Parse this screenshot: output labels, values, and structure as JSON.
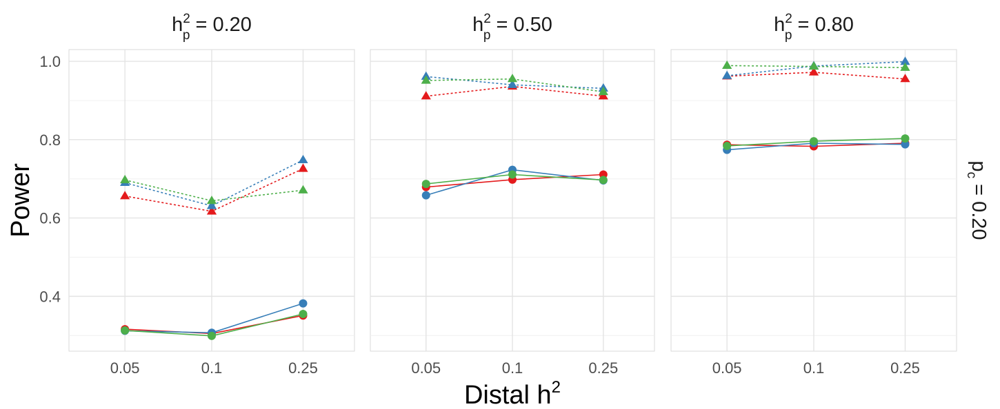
{
  "chart_data": {
    "type": "line",
    "ylabel": "Power",
    "xlabel": {
      "base": "Distal h",
      "sup": "2"
    },
    "strip_right": {
      "base": "p",
      "sub": "c",
      "rest": " = 0.20"
    },
    "x_categories": [
      "0.05",
      "0.1",
      "0.25"
    ],
    "ylim": [
      0.26,
      1.03
    ],
    "yticks": [
      "1.0",
      "0.8",
      "0.6",
      "0.4"
    ],
    "ytick_values": [
      1.0,
      0.8,
      0.6,
      0.4
    ],
    "yminor_values": [
      0.9,
      0.7,
      0.5,
      0.3
    ],
    "grid": true,
    "facets": [
      {
        "title": {
          "base": "h",
          "sup": "2",
          "sub": "p",
          "rest": " = 0.20"
        },
        "series": [
          {
            "color": "#E41A1C",
            "marker": "triangle",
            "linestyle": "dotted",
            "values": [
              0.656,
              0.617,
              0.726
            ]
          },
          {
            "color": "#377EB8",
            "marker": "triangle",
            "linestyle": "dotted",
            "values": [
              0.69,
              0.631,
              0.748
            ]
          },
          {
            "color": "#4DAF4A",
            "marker": "triangle",
            "linestyle": "dotted",
            "values": [
              0.697,
              0.644,
              0.671
            ]
          },
          {
            "color": "#E41A1C",
            "marker": "circle",
            "linestyle": "solid",
            "values": [
              0.316,
              0.305,
              0.351
            ]
          },
          {
            "color": "#377EB8",
            "marker": "circle",
            "linestyle": "solid",
            "values": [
              0.312,
              0.307,
              0.382
            ]
          },
          {
            "color": "#4DAF4A",
            "marker": "circle",
            "linestyle": "solid",
            "values": [
              0.313,
              0.299,
              0.355
            ]
          }
        ]
      },
      {
        "title": {
          "base": "h",
          "sup": "2",
          "sub": "p",
          "rest": " = 0.50"
        },
        "series": [
          {
            "color": "#E41A1C",
            "marker": "triangle",
            "linestyle": "dotted",
            "values": [
              0.911,
              0.936,
              0.911
            ]
          },
          {
            "color": "#377EB8",
            "marker": "triangle",
            "linestyle": "dotted",
            "values": [
              0.961,
              0.94,
              0.931
            ]
          },
          {
            "color": "#4DAF4A",
            "marker": "triangle",
            "linestyle": "dotted",
            "values": [
              0.951,
              0.955,
              0.922
            ]
          },
          {
            "color": "#E41A1C",
            "marker": "circle",
            "linestyle": "solid",
            "values": [
              0.679,
              0.698,
              0.711
            ]
          },
          {
            "color": "#377EB8",
            "marker": "circle",
            "linestyle": "solid",
            "values": [
              0.658,
              0.723,
              0.696
            ]
          },
          {
            "color": "#4DAF4A",
            "marker": "circle",
            "linestyle": "solid",
            "values": [
              0.687,
              0.711,
              0.697
            ]
          }
        ]
      },
      {
        "title": {
          "base": "h",
          "sup": "2",
          "sub": "p",
          "rest": " = 0.80"
        },
        "series": [
          {
            "color": "#E41A1C",
            "marker": "triangle",
            "linestyle": "dotted",
            "values": [
              0.962,
              0.972,
              0.955
            ]
          },
          {
            "color": "#377EB8",
            "marker": "triangle",
            "linestyle": "dotted",
            "values": [
              0.963,
              0.988,
              0.999
            ]
          },
          {
            "color": "#4DAF4A",
            "marker": "triangle",
            "linestyle": "dotted",
            "values": [
              0.989,
              0.987,
              0.984
            ]
          },
          {
            "color": "#E41A1C",
            "marker": "circle",
            "linestyle": "solid",
            "values": [
              0.787,
              0.783,
              0.791
            ]
          },
          {
            "color": "#377EB8",
            "marker": "circle",
            "linestyle": "solid",
            "values": [
              0.774,
              0.791,
              0.788
            ]
          },
          {
            "color": "#4DAF4A",
            "marker": "circle",
            "linestyle": "solid",
            "values": [
              0.784,
              0.796,
              0.803
            ]
          }
        ]
      }
    ]
  }
}
